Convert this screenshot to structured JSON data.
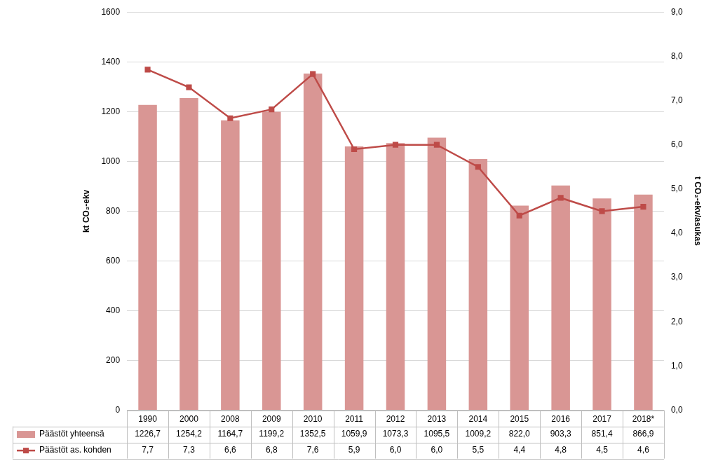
{
  "chart_data": {
    "type": "bar",
    "categories": [
      "1990",
      "2000",
      "2008",
      "2009",
      "2010",
      "2011",
      "2012",
      "2013",
      "2014",
      "2015",
      "2016",
      "2017",
      "2018*"
    ],
    "series": [
      {
        "name": "Päästöt yhteensä",
        "type": "bar",
        "color": "#d99694",
        "values": [
          1226.7,
          1254.2,
          1164.7,
          1199.2,
          1352.5,
          1059.9,
          1073.3,
          1095.5,
          1009.2,
          822.0,
          903.3,
          851.4,
          866.9
        ],
        "value_labels": [
          "1226,7",
          "1254,2",
          "1164,7",
          "1199,2",
          "1352,5",
          "1059,9",
          "1073,3",
          "1095,5",
          "1009,2",
          "822,0",
          "903,3",
          "851,4",
          "866,9"
        ]
      },
      {
        "name": "Päästöt as. kohden",
        "type": "line",
        "color": "#be4b48",
        "marker": "square",
        "axis": "y2",
        "values": [
          7.7,
          7.3,
          6.6,
          6.8,
          7.6,
          5.9,
          6.0,
          6.0,
          5.5,
          4.4,
          4.8,
          4.5,
          4.6
        ],
        "value_labels": [
          "7,7",
          "7,3",
          "6,6",
          "6,8",
          "7,6",
          "5,9",
          "6,0",
          "6,0",
          "5,5",
          "4,4",
          "4,8",
          "4,5",
          "4,6"
        ]
      }
    ],
    "ylabel": "kt CO₂-ekv",
    "y2label": "t CO₂-ekv/asukas",
    "ylim": [
      0,
      1600
    ],
    "yticks": [
      0,
      200,
      400,
      600,
      800,
      1000,
      1200,
      1400,
      1600
    ],
    "y2lim": [
      0,
      9
    ],
    "y2ticks": [
      {
        "value": 0,
        "label": "0,0"
      },
      {
        "value": 1,
        "label": "1,0"
      },
      {
        "value": 2,
        "label": "2,0"
      },
      {
        "value": 3,
        "label": "3,0"
      },
      {
        "value": 4,
        "label": "4,0"
      },
      {
        "value": 5,
        "label": "5,0"
      },
      {
        "value": 6,
        "label": "6,0"
      },
      {
        "value": 7,
        "label": "7,0"
      },
      {
        "value": 8,
        "label": "8,0"
      },
      {
        "value": 9,
        "label": "9,0"
      }
    ],
    "grid": true
  }
}
